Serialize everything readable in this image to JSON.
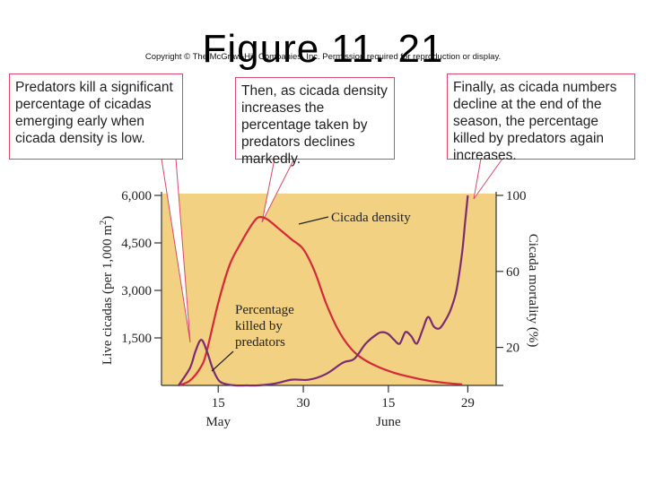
{
  "slide": {
    "title": "Figure 11. 21",
    "copyright": "Copyright © The McGraw-Hill Companies, Inc. Permission required for reproduction or display."
  },
  "callouts": [
    "Predators kill a significant percentage of cicadas emerging early when cicada density is low.",
    "Then, as cicada density increases the percentage taken by predators declines markedly.",
    "Finally, as cicada numbers decline at the end of the season, the percentage killed by predators again increases."
  ],
  "colors": {
    "panel": "#f2d282",
    "density_line": "#d62839",
    "mortality_line": "#7a2b73",
    "callout_border": "#d94a6a",
    "axis": "#333333"
  },
  "chart_data": {
    "type": "line",
    "xlabel": "",
    "x_ticks": [
      {
        "day": 15,
        "label": "15"
      },
      {
        "day": 30,
        "label": "30"
      },
      {
        "day": 45,
        "label": "15"
      },
      {
        "day": 59,
        "label": "29"
      }
    ],
    "month_labels": [
      {
        "day": 15,
        "label": "May"
      },
      {
        "day": 45,
        "label": "June"
      }
    ],
    "xlim": [
      5,
      64
    ],
    "y_left": {
      "label": "Live cicadas (per 1,000 m",
      "label_sup": "2",
      "label_end": ")",
      "ticks": [
        "6,000",
        "4,500",
        "3,000",
        "1,500"
      ],
      "tick_values": [
        6000,
        4500,
        3000,
        1500
      ],
      "ylim": [
        0,
        6000
      ]
    },
    "y_right": {
      "label": "Cicada mortality (%)",
      "ticks": [
        "100",
        "60",
        "20"
      ],
      "tick_values": [
        100,
        60,
        20
      ],
      "ylim": [
        0,
        100
      ]
    },
    "series": [
      {
        "name": "Cicada density",
        "axis": "left",
        "x": [
          8,
          10,
          12,
          13,
          15,
          17,
          19,
          21,
          22,
          23,
          24,
          26,
          28,
          30,
          32,
          34,
          36,
          38,
          40,
          43,
          46,
          49,
          52,
          55,
          58
        ],
        "y": [
          0,
          150,
          600,
          1100,
          2600,
          3800,
          4500,
          5100,
          5300,
          5300,
          5200,
          4900,
          4600,
          4300,
          3600,
          2600,
          1800,
          1250,
          900,
          600,
          400,
          260,
          150,
          80,
          30
        ]
      },
      {
        "name": "Percentage killed by predators",
        "axis": "right",
        "x": [
          8,
          10,
          11,
          12,
          13,
          14,
          15,
          16,
          18,
          20,
          22,
          25,
          28,
          31,
          34,
          37,
          39,
          41,
          43,
          44,
          45,
          46,
          47,
          48,
          49,
          50,
          51,
          52,
          53,
          54,
          55,
          56,
          57,
          58,
          58.5,
          59
        ],
        "y": [
          0,
          9,
          18,
          24,
          18,
          9,
          3,
          1,
          0,
          0,
          0,
          1,
          3,
          3,
          6,
          12,
          14,
          22,
          27,
          28,
          27,
          24,
          22,
          28,
          26,
          22,
          29,
          36,
          31,
          30,
          34,
          40,
          50,
          70,
          85,
          100
        ]
      }
    ],
    "annotations": [
      {
        "text": "Cicada density",
        "series": "Cicada density"
      },
      {
        "text": "Percentage",
        "series": "Percentage killed by predators"
      },
      {
        "text": "killed by",
        "series": "Percentage killed by predators"
      },
      {
        "text": "predators",
        "series": "Percentage killed by predators"
      }
    ]
  }
}
